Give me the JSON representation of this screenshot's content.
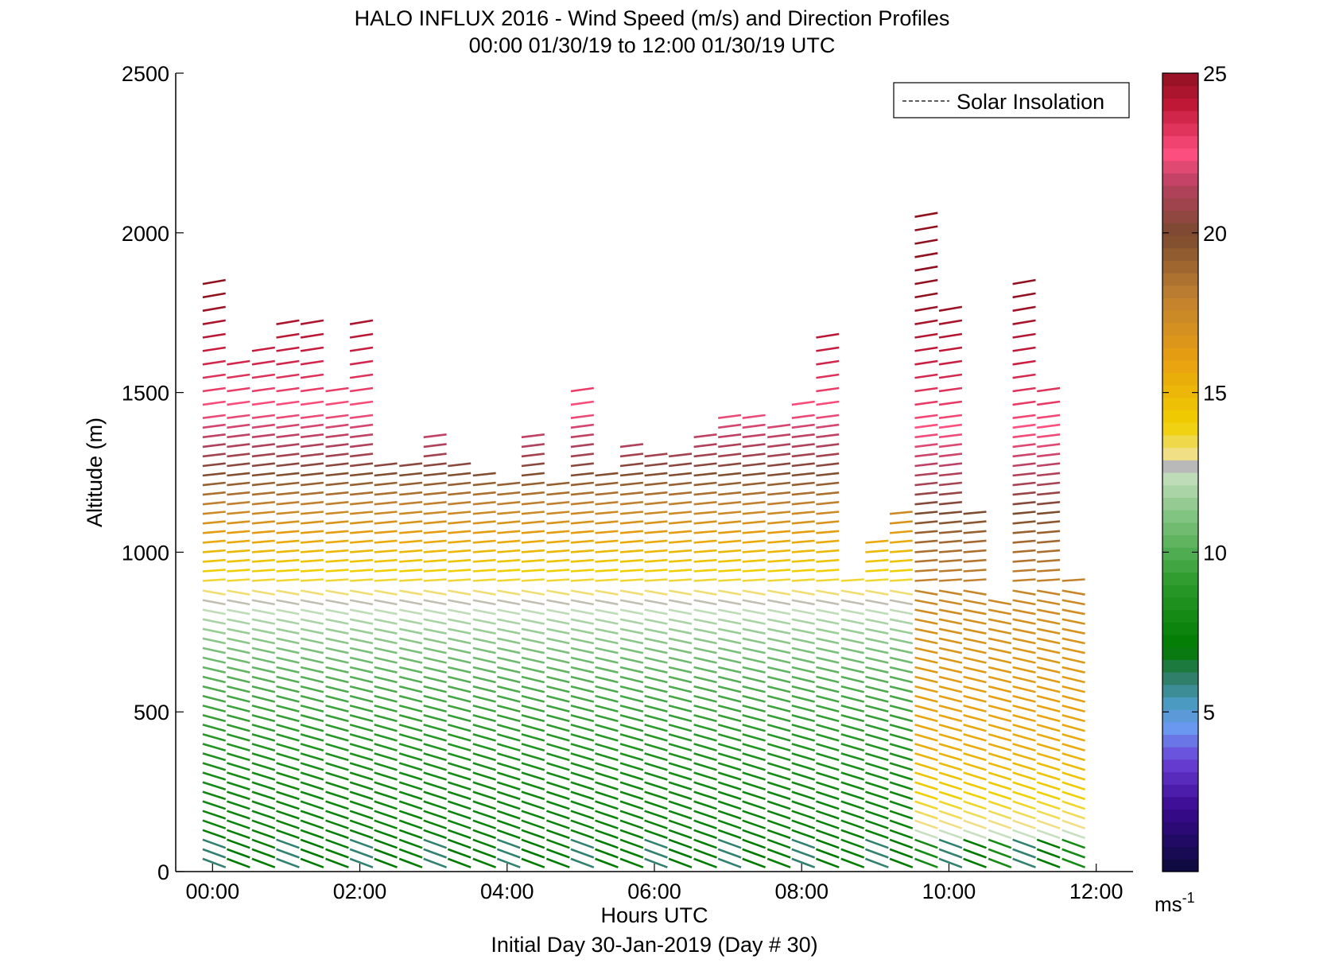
{
  "chart_data": {
    "type": "wind-barb-profile",
    "title": "HALO INFLUX 2016 - Wind Speed (m/s) and Direction Profiles",
    "subtitle": "00:00 01/30/19 to 12:00 01/30/19  UTC",
    "xlabel": "Hours UTC",
    "xlabel2": "Initial Day 30-Jan-2019 (Day # 30)",
    "ylabel": "Altitude (m)",
    "xlim": [
      -0.5,
      12.5
    ],
    "ylim": [
      0,
      2500
    ],
    "x_ticks": [
      0,
      2,
      4,
      6,
      8,
      10,
      12
    ],
    "x_tick_labels": [
      "00:00",
      "02:00",
      "04:00",
      "06:00",
      "08:00",
      "10:00",
      "12:00"
    ],
    "y_ticks": [
      0,
      500,
      1000,
      1500,
      2000,
      2500
    ],
    "y_tick_labels": [
      "0",
      "500",
      "1000",
      "1500",
      "2000",
      "2500"
    ],
    "legend": {
      "entries": [
        "Solar Insolation"
      ],
      "placement": "top-right",
      "line_color": "#000000",
      "line_style": "dashed"
    },
    "colorbar": {
      "range": [
        0,
        25
      ],
      "ticks": [
        5,
        10,
        15,
        20,
        25
      ],
      "tick_labels": [
        "5",
        "10",
        "15",
        "20",
        "25"
      ],
      "unit_label": "ms",
      "unit_exponent": "-1",
      "stops": [
        {
          "v": 0,
          "color": "#0a0a3a"
        },
        {
          "v": 2,
          "color": "#3a0a90"
        },
        {
          "v": 3.5,
          "color": "#6a40d8"
        },
        {
          "v": 4.5,
          "color": "#6a98f0"
        },
        {
          "v": 5.3,
          "color": "#4a9ac0"
        },
        {
          "v": 6.2,
          "color": "#2a7a5a"
        },
        {
          "v": 7,
          "color": "#007a00"
        },
        {
          "v": 9,
          "color": "#2a9a2a"
        },
        {
          "v": 11,
          "color": "#7ac07a"
        },
        {
          "v": 12.5,
          "color": "#c8e0c0"
        },
        {
          "v": 12.7,
          "color": "#b8b8b8"
        },
        {
          "v": 13,
          "color": "#f0e090"
        },
        {
          "v": 14,
          "color": "#f0d000"
        },
        {
          "v": 16,
          "color": "#e8a010"
        },
        {
          "v": 18,
          "color": "#c08030"
        },
        {
          "v": 20,
          "color": "#7a4a30"
        },
        {
          "v": 21.5,
          "color": "#b84060"
        },
        {
          "v": 22.5,
          "color": "#ff5080"
        },
        {
          "v": 24,
          "color": "#c01838"
        },
        {
          "v": 25,
          "color": "#901020"
        }
      ]
    },
    "profiles": [
      {
        "t": 0.0,
        "top": 1860
      },
      {
        "t": 0.33,
        "top": 1610
      },
      {
        "t": 0.67,
        "top": 1650
      },
      {
        "t": 1.0,
        "top": 1730
      },
      {
        "t": 1.33,
        "top": 1740
      },
      {
        "t": 1.67,
        "top": 1540
      },
      {
        "t": 2.0,
        "top": 1740
      },
      {
        "t": 2.33,
        "top": 1280
      },
      {
        "t": 2.67,
        "top": 1280
      },
      {
        "t": 3.0,
        "top": 1370
      },
      {
        "t": 3.33,
        "top": 1290
      },
      {
        "t": 3.67,
        "top": 1260
      },
      {
        "t": 4.0,
        "top": 1230
      },
      {
        "t": 4.33,
        "top": 1370
      },
      {
        "t": 4.67,
        "top": 1220
      },
      {
        "t": 5.0,
        "top": 1540
      },
      {
        "t": 5.33,
        "top": 1260
      },
      {
        "t": 5.67,
        "top": 1330
      },
      {
        "t": 6.0,
        "top": 1320
      },
      {
        "t": 6.33,
        "top": 1300
      },
      {
        "t": 6.67,
        "top": 1380
      },
      {
        "t": 7.0,
        "top": 1460
      },
      {
        "t": 7.33,
        "top": 1440
      },
      {
        "t": 7.67,
        "top": 1410
      },
      {
        "t": 8.0,
        "top": 1500
      },
      {
        "t": 8.33,
        "top": 1700
      },
      {
        "t": 8.67,
        "top": 920
      },
      {
        "t": 9.0,
        "top": 1050
      },
      {
        "t": 9.33,
        "top": 1120
      },
      {
        "t": 9.67,
        "top": 2080
      },
      {
        "t": 10.0,
        "top": 1790
      },
      {
        "t": 10.33,
        "top": 1130
      },
      {
        "t": 10.67,
        "top": 850
      },
      {
        "t": 11.0,
        "top": 1870
      },
      {
        "t": 11.33,
        "top": 1540
      },
      {
        "t": 11.67,
        "top": 920
      }
    ],
    "speed_by_altitude_early": [
      {
        "alt": 0,
        "speed": 7
      },
      {
        "alt": 300,
        "speed": 8
      },
      {
        "alt": 600,
        "speed": 10
      },
      {
        "alt": 800,
        "speed": 12
      },
      {
        "alt": 1000,
        "speed": 15
      },
      {
        "alt": 1150,
        "speed": 18
      },
      {
        "alt": 1300,
        "speed": 21
      },
      {
        "alt": 1500,
        "speed": 23
      },
      {
        "alt": 1800,
        "speed": 25
      }
    ],
    "speed_by_altitude_late": [
      {
        "alt": 0,
        "speed": 9
      },
      {
        "alt": 150,
        "speed": 13
      },
      {
        "alt": 400,
        "speed": 15.5
      },
      {
        "alt": 800,
        "speed": 17
      },
      {
        "alt": 1050,
        "speed": 19
      },
      {
        "alt": 1200,
        "speed": 21
      },
      {
        "alt": 1450,
        "speed": 23
      },
      {
        "alt": 1800,
        "speed": 25
      }
    ]
  }
}
